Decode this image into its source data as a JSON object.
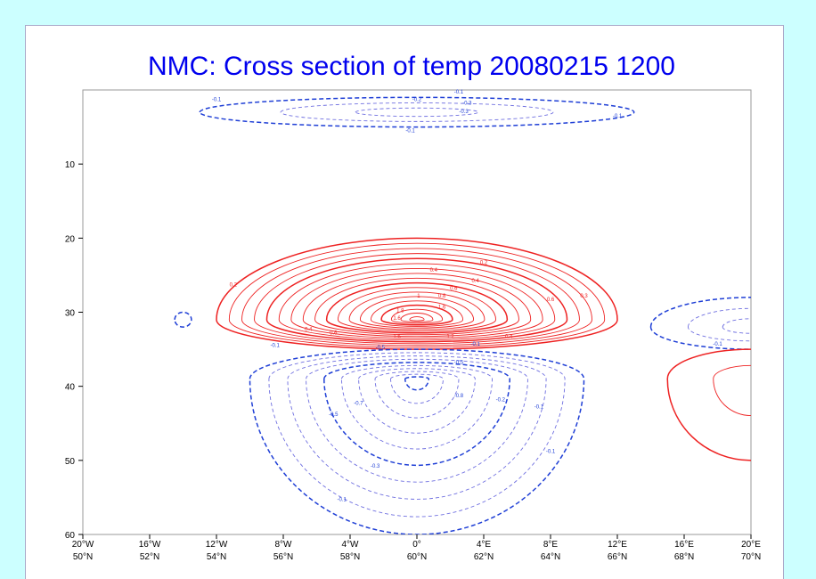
{
  "colors": {
    "background": "#ccffff",
    "panel": "#ffffff",
    "title": "#0000ee",
    "positive": "#ee2222",
    "negative_major": "#1f3fd6",
    "negative_minor": "#6f6fe0"
  },
  "chart_data": {
    "type": "contour",
    "title": "NMC: Cross section of  temp 20080215 1200",
    "xlabel": "",
    "ylabel": "",
    "x_axis": {
      "range": [
        -20,
        20
      ],
      "tick_values": [
        -20,
        -16,
        -12,
        -8,
        -4,
        0,
        4,
        8,
        12,
        16,
        20
      ],
      "tick_labels_lon": [
        "20°W",
        "16°W",
        "12°W",
        "8°W",
        "4°W",
        "0°",
        "4°E",
        "8°E",
        "12°E",
        "16°E",
        "20°E"
      ],
      "tick_labels_lat": [
        "50°N",
        "52°N",
        "54°N",
        "56°N",
        "58°N",
        "60°N",
        "62°N",
        "64°N",
        "66°N",
        "68°N",
        "70°N"
      ]
    },
    "y_axis": {
      "range": [
        0,
        60
      ],
      "inverted": true,
      "ticks": [
        10,
        20,
        30,
        40,
        50,
        60
      ]
    },
    "grid": false,
    "contour_interval": 0.1,
    "positive_style": "solid red, heavier every 0.5",
    "negative_style": "dashed blue, heavier every 0.5",
    "features": [
      {
        "name": "warm core",
        "sign": "positive",
        "center_x": 0,
        "center_y": 31,
        "extent_x": [
          -12,
          12
        ],
        "extent_y": [
          20,
          35
        ],
        "max_label": 1.8
      },
      {
        "name": "cold core",
        "sign": "negative",
        "center_x": 0,
        "center_y": 39,
        "extent_x": [
          -10,
          9
        ],
        "extent_y": [
          35,
          60
        ],
        "max_label": -1.0
      },
      {
        "name": "upper cold band",
        "sign": "negative",
        "center_x": 0,
        "center_y": 3,
        "extent_x": [
          -12,
          13
        ],
        "extent_y": [
          1,
          5
        ],
        "max_label": -0.3
      },
      {
        "name": "eastern cold lobe",
        "sign": "negative",
        "center_x": 20,
        "center_y": 32,
        "extent_x": [
          14,
          20
        ],
        "extent_y": [
          28,
          35
        ],
        "max_label": -0.3
      },
      {
        "name": "eastern warm lobe",
        "sign": "positive",
        "center_x": 20,
        "center_y": 39,
        "extent_x": [
          15,
          20
        ],
        "extent_y": [
          35,
          50
        ],
        "max_label": 0.2
      },
      {
        "name": "western cold blip",
        "sign": "negative",
        "center_x": -14,
        "center_y": 31,
        "extent_x": [
          -14.5,
          -13.5
        ],
        "extent_y": [
          30,
          32
        ],
        "max_label": -0.1
      }
    ],
    "contour_labels": [
      {
        "text": "-0.1",
        "x": -12,
        "y": 1.5
      },
      {
        "text": "-0.1",
        "x": 2.5,
        "y": 0.5
      },
      {
        "text": "-0.2",
        "x": 0,
        "y": 1.5
      },
      {
        "text": "-0.3",
        "x": 3,
        "y": 2
      },
      {
        "text": "-0.3",
        "x": 2.8,
        "y": 3.1
      },
      {
        "text": "-0.1",
        "x": 12,
        "y": 3.7
      },
      {
        "text": "-0.1",
        "x": -0.4,
        "y": 5.7
      },
      {
        "text": "0.2",
        "x": -11,
        "y": 26.5
      },
      {
        "text": "0.2",
        "x": 4,
        "y": 23.5
      },
      {
        "text": "0.4",
        "x": 1,
        "y": 24.5
      },
      {
        "text": "0.4",
        "x": 3.5,
        "y": 26
      },
      {
        "text": "0.6",
        "x": 2.2,
        "y": 27
      },
      {
        "text": "0.6",
        "x": 8,
        "y": 28.5
      },
      {
        "text": "0.8",
        "x": 1.5,
        "y": 28
      },
      {
        "text": "1",
        "x": 0.1,
        "y": 28
      },
      {
        "text": "1.6",
        "x": 1.5,
        "y": 29.5
      },
      {
        "text": "1.6",
        "x": -1.2,
        "y": 31
      },
      {
        "text": "1.8",
        "x": -1,
        "y": 30
      },
      {
        "text": "0.3",
        "x": 10,
        "y": 28
      },
      {
        "text": "0.4",
        "x": -6.5,
        "y": 32.5
      },
      {
        "text": "0.6",
        "x": -5,
        "y": 33
      },
      {
        "text": "1.6",
        "x": -1.2,
        "y": 33.5
      },
      {
        "text": "1.2",
        "x": 2,
        "y": 33.5
      },
      {
        "text": "0.4",
        "x": 5.5,
        "y": 33.5
      },
      {
        "text": "-0.1",
        "x": -8.5,
        "y": 34.7
      },
      {
        "text": "-0.5",
        "x": -2.2,
        "y": 35
      },
      {
        "text": "-0.1",
        "x": 3.5,
        "y": 34.5
      },
      {
        "text": "-0.5",
        "x": 2.5,
        "y": 37
      },
      {
        "text": "-0.8",
        "x": 2.5,
        "y": 41.5
      },
      {
        "text": "-0.2",
        "x": 5,
        "y": 42
      },
      {
        "text": "-0.1",
        "x": 7.3,
        "y": 43
      },
      {
        "text": "-0.7",
        "x": -3.5,
        "y": 42.5
      },
      {
        "text": "-0.5",
        "x": -5,
        "y": 44
      },
      {
        "text": "-0.3",
        "x": -2.5,
        "y": 51
      },
      {
        "text": "-0.1",
        "x": 8,
        "y": 49
      },
      {
        "text": "-0.1",
        "x": -4.5,
        "y": 55.5
      },
      {
        "text": "-0.1",
        "x": 18,
        "y": 34.5
      }
    ]
  }
}
